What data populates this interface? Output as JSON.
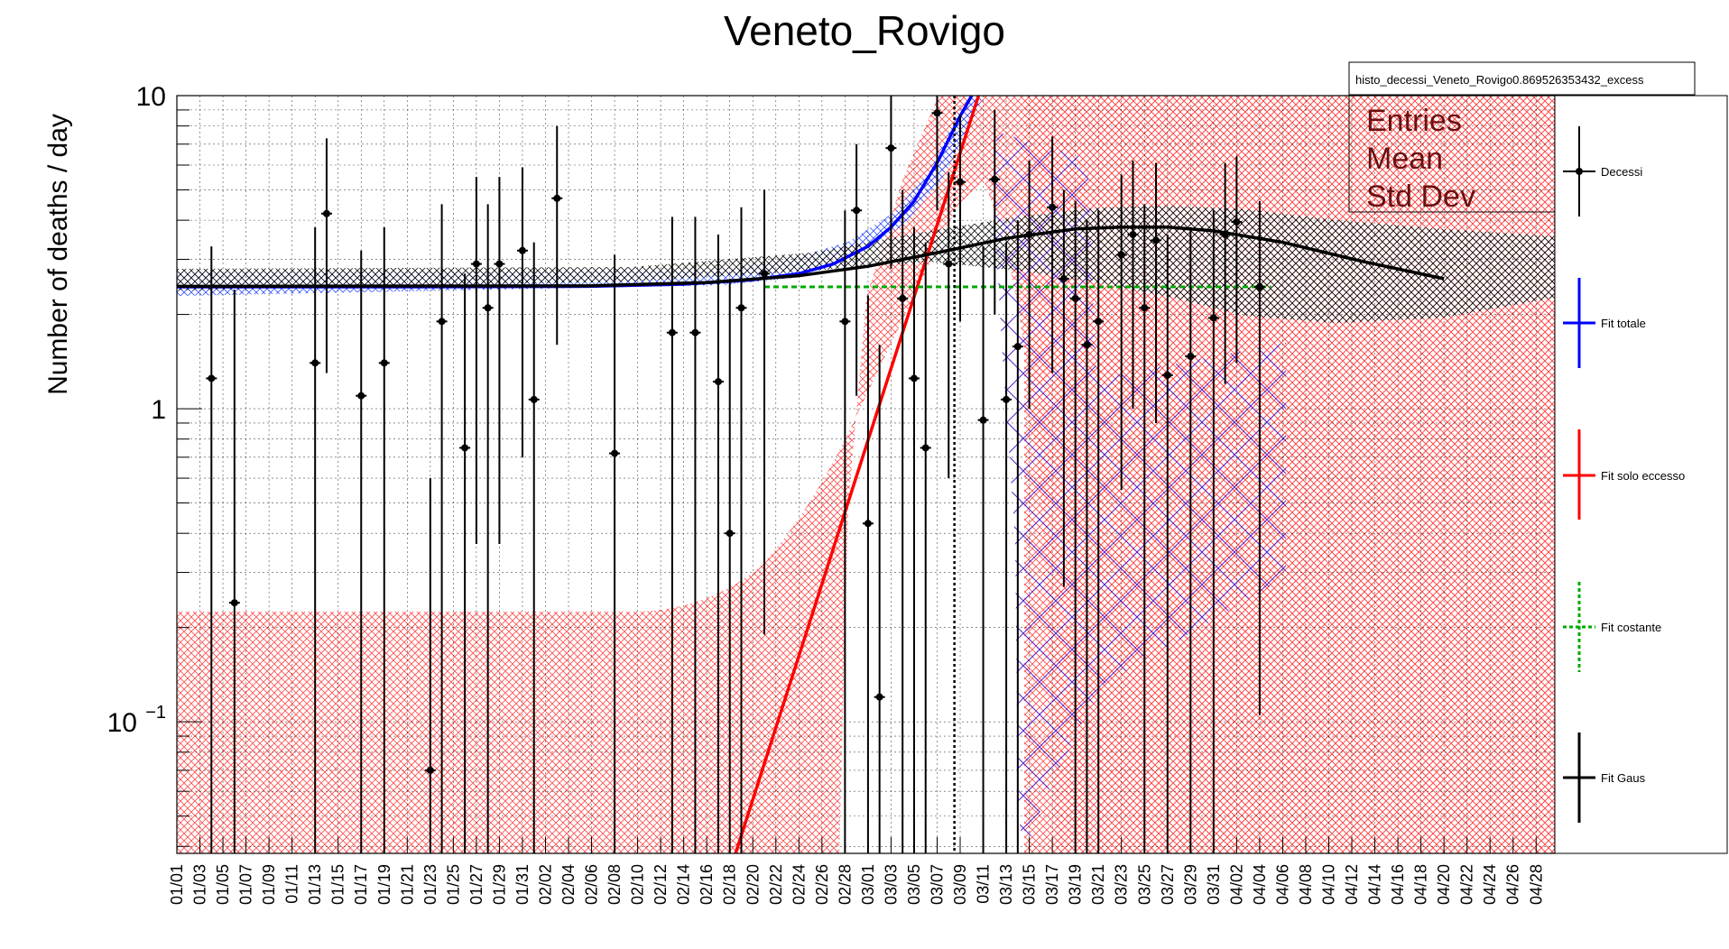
{
  "chart_data": {
    "type": "scatter",
    "title": "Veneto_Rovigo",
    "ylabel": "Number of deaths / day",
    "xlabel": "",
    "y_scale": "log",
    "ylim": [
      0.038,
      10
    ],
    "y_ticks": [
      {
        "value": 10,
        "label": "10"
      },
      {
        "value": 1,
        "label": "1"
      },
      {
        "value": 0.1,
        "label": "10",
        "exp": "−1"
      }
    ],
    "grid": true,
    "x_labels": [
      "01/01",
      "01/03",
      "01/05",
      "01/07",
      "01/09",
      "01/11",
      "01/13",
      "01/15",
      "01/17",
      "01/19",
      "01/21",
      "01/23",
      "01/25",
      "01/27",
      "01/29",
      "01/31",
      "02/02",
      "02/04",
      "02/06",
      "02/08",
      "02/10",
      "02/12",
      "02/14",
      "02/16",
      "02/18",
      "02/20",
      "02/22",
      "02/24",
      "02/26",
      "02/28",
      "03/01",
      "03/03",
      "03/05",
      "03/07",
      "03/09",
      "03/11",
      "03/13",
      "03/15",
      "03/17",
      "03/19",
      "03/21",
      "03/23",
      "03/25",
      "03/27",
      "03/29",
      "03/31",
      "04/02",
      "04/04",
      "04/06",
      "04/08",
      "04/10",
      "04/12",
      "04/14",
      "04/16",
      "04/18",
      "04/20",
      "04/22",
      "04/24",
      "04/26",
      "04/28"
    ],
    "stats_box": {
      "name": "histo_decessi_Veneto_Rovigo0.869526353432_excess",
      "rows": [
        "Entries",
        "Mean",
        "Std Dev"
      ]
    },
    "legend": [
      {
        "label": "Decessi",
        "color": "#000000",
        "style": "marker"
      },
      {
        "label": "Fit totale",
        "color": "#0000ff",
        "style": "line"
      },
      {
        "label": "Fit solo eccesso",
        "color": "#ff0000",
        "style": "line"
      },
      {
        "label": "Fit costante",
        "color": "#00aa00",
        "style": "dashed"
      },
      {
        "label": "Fit Gaus",
        "color": "#000000",
        "style": "line"
      }
    ],
    "marker_day": 67.5,
    "series": [
      {
        "name": "Decessi",
        "points": [
          {
            "x": 3,
            "y": 1.25,
            "lo": 0.038,
            "hi": 3.3
          },
          {
            "x": 5,
            "y": 0.24,
            "lo": 0.038,
            "hi": 2.4
          },
          {
            "x": 12,
            "y": 1.4,
            "lo": 0.038,
            "hi": 3.8
          },
          {
            "x": 13,
            "y": 4.2,
            "lo": 1.3,
            "hi": 7.3
          },
          {
            "x": 16,
            "y": 1.1,
            "lo": 0.038,
            "hi": 3.2
          },
          {
            "x": 18,
            "y": 1.4,
            "lo": 0.038,
            "hi": 3.8
          },
          {
            "x": 22,
            "y": 0.07,
            "lo": 0.038,
            "hi": 0.6
          },
          {
            "x": 23,
            "y": 1.9,
            "lo": 0.038,
            "hi": 4.5
          },
          {
            "x": 25,
            "y": 0.75,
            "lo": 0.038,
            "hi": 2.7
          },
          {
            "x": 26,
            "y": 2.9,
            "lo": 0.37,
            "hi": 5.5
          },
          {
            "x": 27,
            "y": 2.1,
            "lo": 0.038,
            "hi": 4.5
          },
          {
            "x": 28,
            "y": 2.9,
            "lo": 0.37,
            "hi": 5.5
          },
          {
            "x": 30,
            "y": 3.2,
            "lo": 0.7,
            "hi": 5.9
          },
          {
            "x": 31,
            "y": 1.07,
            "lo": 0.038,
            "hi": 3.4
          },
          {
            "x": 33,
            "y": 4.7,
            "lo": 1.6,
            "hi": 8.0
          },
          {
            "x": 38,
            "y": 0.72,
            "lo": 0.038,
            "hi": 3.1
          },
          {
            "x": 43,
            "y": 1.75,
            "lo": 0.038,
            "hi": 4.1
          },
          {
            "x": 45,
            "y": 1.75,
            "lo": 0.038,
            "hi": 4.1
          },
          {
            "x": 47,
            "y": 1.22,
            "lo": 0.038,
            "hi": 3.6
          },
          {
            "x": 48,
            "y": 0.4,
            "lo": 0.038,
            "hi": 2.6
          },
          {
            "x": 49,
            "y": 2.1,
            "lo": 0.038,
            "hi": 4.4
          },
          {
            "x": 51,
            "y": 2.7,
            "lo": 0.19,
            "hi": 5.0
          },
          {
            "x": 58,
            "y": 1.9,
            "lo": 0.038,
            "hi": 4.3
          },
          {
            "x": 59,
            "y": 4.3,
            "lo": 1.1,
            "hi": 7.0
          },
          {
            "x": 60,
            "y": 0.43,
            "lo": 0.038,
            "hi": 2.3
          },
          {
            "x": 61,
            "y": 0.12,
            "lo": 0.038,
            "hi": 1.6
          },
          {
            "x": 62,
            "y": 6.8,
            "lo": 2.8,
            "hi": 10
          },
          {
            "x": 63,
            "y": 2.25,
            "lo": 0.038,
            "hi": 5.0
          },
          {
            "x": 64,
            "y": 1.25,
            "lo": 0.038,
            "hi": 3.8
          },
          {
            "x": 65,
            "y": 0.75,
            "lo": 0.038,
            "hi": 3.4
          },
          {
            "x": 66,
            "y": 8.8,
            "lo": 4.3,
            "hi": 10
          },
          {
            "x": 67,
            "y": 2.9,
            "lo": 0.6,
            "hi": 5.7
          },
          {
            "x": 68,
            "y": 5.3,
            "lo": 1.9,
            "hi": 8.7
          },
          {
            "x": 70,
            "y": 0.92,
            "lo": 0.038,
            "hi": 3.3
          },
          {
            "x": 71,
            "y": 5.4,
            "lo": 2.0,
            "hi": 9.0
          },
          {
            "x": 72,
            "y": 1.07,
            "lo": 0.038,
            "hi": 3.4
          },
          {
            "x": 73,
            "y": 1.58,
            "lo": 0.038,
            "hi": 4.0
          },
          {
            "x": 74,
            "y": 3.6,
            "lo": 1.0,
            "hi": 6.2
          },
          {
            "x": 76,
            "y": 4.4,
            "lo": 1.3,
            "hi": 7.4
          },
          {
            "x": 77,
            "y": 2.6,
            "lo": 0.27,
            "hi": 5.0
          },
          {
            "x": 78,
            "y": 2.25,
            "lo": 0.038,
            "hi": 4.6
          },
          {
            "x": 79,
            "y": 1.6,
            "lo": 0.038,
            "hi": 4.0
          },
          {
            "x": 80,
            "y": 1.9,
            "lo": 0.038,
            "hi": 4.3
          },
          {
            "x": 82,
            "y": 3.1,
            "lo": 0.55,
            "hi": 5.6
          },
          {
            "x": 83,
            "y": 3.6,
            "lo": 1.0,
            "hi": 6.2
          },
          {
            "x": 84,
            "y": 2.1,
            "lo": 0.038,
            "hi": 4.5
          },
          {
            "x": 85,
            "y": 3.45,
            "lo": 0.9,
            "hi": 6.1
          },
          {
            "x": 86,
            "y": 1.28,
            "lo": 0.038,
            "hi": 3.6
          },
          {
            "x": 88,
            "y": 1.47,
            "lo": 0.038,
            "hi": 3.8
          },
          {
            "x": 90,
            "y": 1.95,
            "lo": 0.038,
            "hi": 4.3
          },
          {
            "x": 91,
            "y": 3.6,
            "lo": 1.2,
            "hi": 6.1
          },
          {
            "x": 92,
            "y": 3.95,
            "lo": 1.4,
            "hi": 6.4
          },
          {
            "x": 94,
            "y": 2.45,
            "lo": 0.105,
            "hi": 4.6
          }
        ]
      },
      {
        "name": "Fit totale",
        "points": [
          {
            "x": 0,
            "y": 2.45
          },
          {
            "x": 20,
            "y": 2.45
          },
          {
            "x": 36,
            "y": 2.46
          },
          {
            "x": 44,
            "y": 2.5
          },
          {
            "x": 50,
            "y": 2.58
          },
          {
            "x": 54,
            "y": 2.7
          },
          {
            "x": 57,
            "y": 2.9
          },
          {
            "x": 60,
            "y": 3.3
          },
          {
            "x": 62,
            "y": 3.8
          },
          {
            "x": 64,
            "y": 4.6
          },
          {
            "x": 66,
            "y": 6.1
          },
          {
            "x": 68,
            "y": 8.6
          },
          {
            "x": 69,
            "y": 10
          }
        ]
      },
      {
        "name": "Fit solo eccesso",
        "points": [
          {
            "x": 48.5,
            "y": 0.038
          },
          {
            "x": 69.6,
            "y": 10
          }
        ]
      },
      {
        "name": "Fit costante",
        "points": [
          {
            "x": 51,
            "y": 2.45
          },
          {
            "x": 95,
            "y": 2.45
          }
        ]
      },
      {
        "name": "Fit Gaus",
        "points": [
          {
            "x": 0,
            "y": 2.46
          },
          {
            "x": 36,
            "y": 2.47
          },
          {
            "x": 46,
            "y": 2.53
          },
          {
            "x": 54,
            "y": 2.66
          },
          {
            "x": 60,
            "y": 2.85
          },
          {
            "x": 66,
            "y": 3.15
          },
          {
            "x": 72,
            "y": 3.5
          },
          {
            "x": 78,
            "y": 3.75
          },
          {
            "x": 82,
            "y": 3.8
          },
          {
            "x": 86,
            "y": 3.8
          },
          {
            "x": 90,
            "y": 3.7
          },
          {
            "x": 96,
            "y": 3.4
          },
          {
            "x": 103,
            "y": 2.95
          },
          {
            "x": 110,
            "y": 2.6
          }
        ]
      }
    ]
  }
}
